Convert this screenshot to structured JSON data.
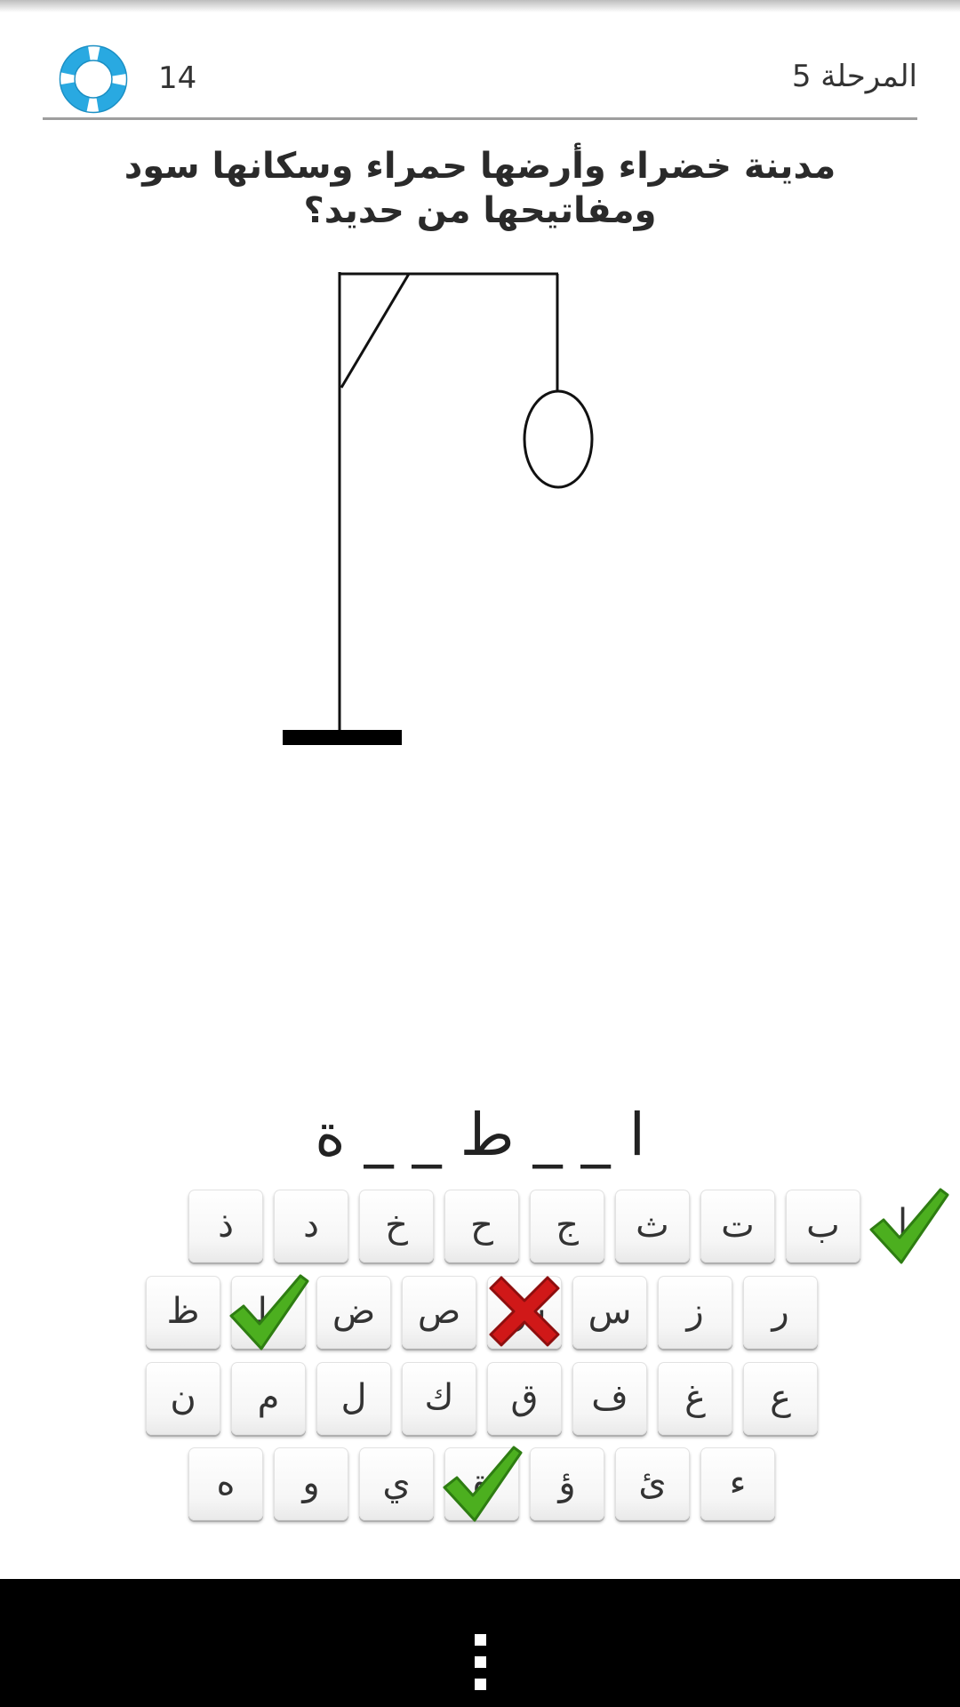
{
  "header": {
    "hints_count": "14",
    "stage_label": "المرحلة 5",
    "hint_icon": "lifebuoy-icon"
  },
  "question": "مدينة خضراء وأرضها حمراء وسكانها سود ومفاتيحها من حديد؟",
  "word_display": "ا _ _ ط _ _ ة",
  "hangman_stage": "head",
  "keyboard": {
    "rows": [
      [
        "ب",
        "ت",
        "ث",
        "ج",
        "ح",
        "خ",
        "د",
        "ذ"
      ],
      [
        "ر",
        "ز",
        "س",
        "ش",
        "ص",
        "ض",
        "ط",
        "ظ"
      ],
      [
        "ع",
        "غ",
        "ف",
        "ق",
        "ك",
        "ل",
        "م",
        "ن"
      ],
      [
        "ء",
        "ئ",
        "ؤ",
        "ة",
        "ي",
        "و",
        "ه"
      ]
    ],
    "correct": [
      "ا",
      "ط",
      "ة"
    ],
    "wrong": [
      "ش"
    ],
    "correct_color": "#4caf1f",
    "wrong_color": "#d01818"
  },
  "navbar": {
    "menu_icon": "overflow-menu-icon"
  }
}
